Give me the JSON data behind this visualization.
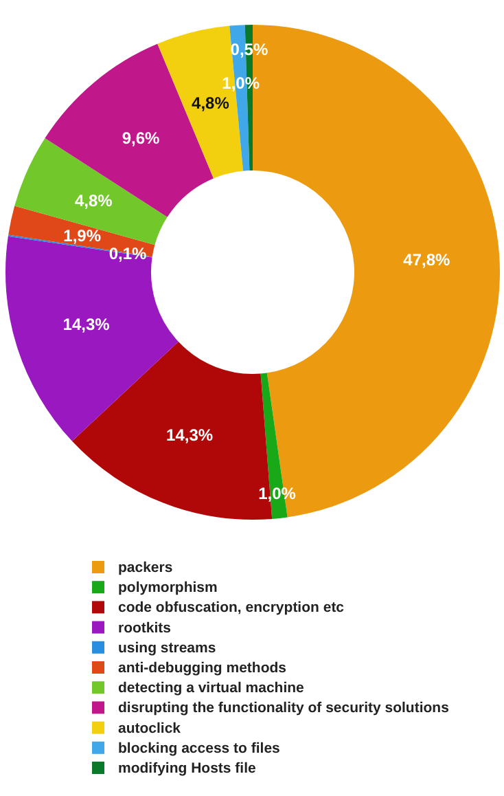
{
  "chart_data": {
    "type": "donut",
    "categories": [
      "packers",
      "polymorphism",
      "code obfuscation, encryption etc",
      "rootkits",
      "using streams",
      "anti-debugging methods",
      "detecting a virtual machine",
      "disrupting the functionality of security solutions",
      "autoclick",
      "blocking access to files",
      "modifying Hosts file"
    ],
    "values": [
      47.8,
      1.0,
      14.3,
      14.3,
      0.1,
      1.9,
      4.8,
      9.6,
      4.8,
      1.0,
      0.5
    ],
    "value_labels": [
      "47,8%",
      "1,0%",
      "14,3%",
      "14,3%",
      "0,1%",
      "1,9%",
      "4,8%",
      "9,6%",
      "4,8%",
      "1,0%",
      "0,5%"
    ],
    "colors": [
      "#ec9a10",
      "#18a818",
      "#b00808",
      "#9a18c0",
      "#2a8ee0",
      "#e04818",
      "#72c82a",
      "#c0188a",
      "#f2d010",
      "#40a8e8",
      "#0a7a2a"
    ],
    "legend": "bottom"
  }
}
